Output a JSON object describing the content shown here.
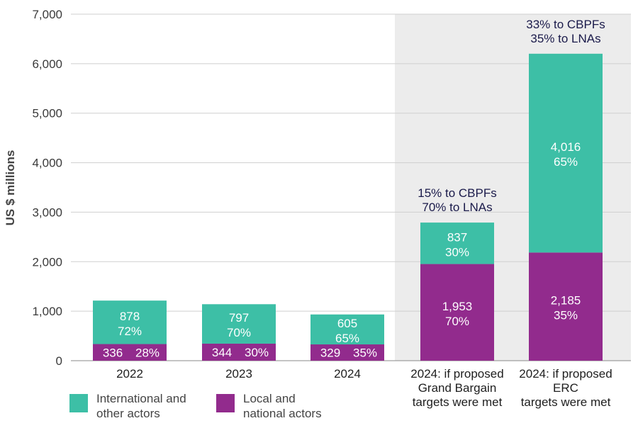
{
  "chart_data": {
    "type": "bar",
    "stacked": true,
    "ylabel": "US $ millions",
    "ylim": [
      0,
      7000
    ],
    "yticks": [
      "0",
      "1,000",
      "2,000",
      "3,000",
      "4,000",
      "5,000",
      "6,000",
      "7,000"
    ],
    "categories": [
      [
        "2022"
      ],
      [
        "2023"
      ],
      [
        "2024"
      ],
      [
        "2024: if proposed",
        "Grand Bargain",
        "targets were met"
      ],
      [
        "2024: if proposed",
        "ERC",
        "targets were met"
      ]
    ],
    "series": [
      {
        "name": "Local and national actors",
        "color": "#922b8d",
        "values": [
          336,
          344,
          329,
          1953,
          2185
        ],
        "value_labels": [
          "336",
          "344",
          "329",
          "1,953",
          "2,185"
        ],
        "pct_labels": [
          "28%",
          "30%",
          "35%",
          "70%",
          "35%"
        ]
      },
      {
        "name": "International and other actors",
        "color": "#3dbfa6",
        "values": [
          878,
          797,
          605,
          837,
          4016
        ],
        "value_labels": [
          "878",
          "797",
          "605",
          "837",
          "4,016"
        ],
        "pct_labels": [
          "72%",
          "70%",
          "65%",
          "30%",
          "65%"
        ]
      }
    ],
    "annotations": [
      {
        "category_index": 3,
        "lines": [
          "15% to CBPFs",
          "70% to LNAs"
        ]
      },
      {
        "category_index": 4,
        "lines": [
          "33% to CBPFs",
          "35% to LNAs"
        ]
      }
    ],
    "shaded_region": {
      "from_category": 3,
      "to_category": 4,
      "color": "#ececec"
    },
    "gridlines": true
  },
  "legend": [
    {
      "label_lines": [
        "International and",
        "other actors"
      ],
      "color": "#3dbfa6"
    },
    {
      "label_lines": [
        "Local and",
        "national actors"
      ],
      "color": "#922b8d"
    }
  ]
}
